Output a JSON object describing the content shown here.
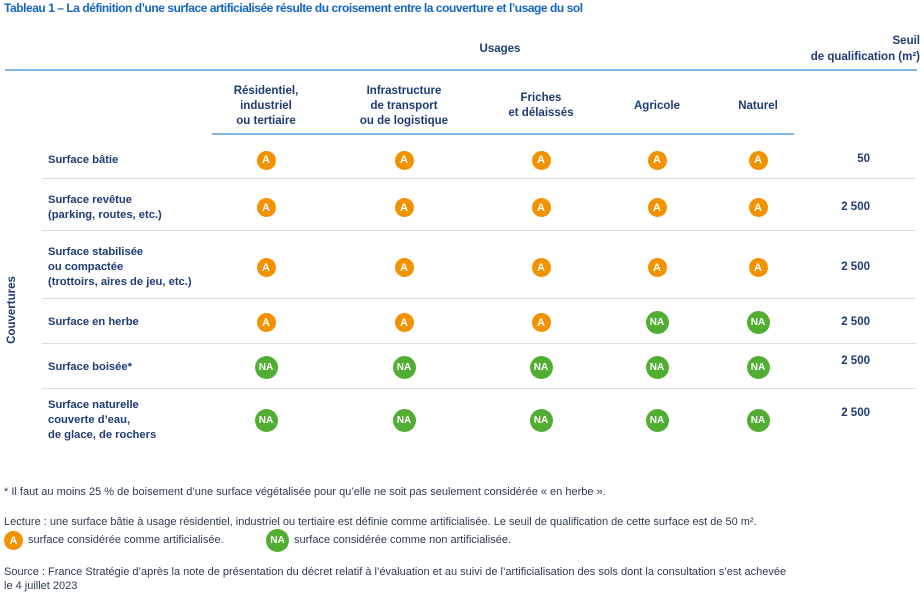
{
  "title": "Tableau 1 – La définition d’une surface artificialisée résulte du croisement entre la couverture et l’usage du sol",
  "header": {
    "usages": "Usages",
    "seuil_line1": "Seuil",
    "seuil_line2": "de qualification (m²)",
    "couvertures": "Couvertures"
  },
  "columns": [
    {
      "lines": [
        "Résidentiel,",
        "industriel",
        "ou tertiaire"
      ]
    },
    {
      "lines": [
        "Infrastructure",
        "de transport",
        "ou de logistique"
      ]
    },
    {
      "lines": [
        "Friches",
        "et délaissés"
      ]
    },
    {
      "lines": [
        "Agricole"
      ]
    },
    {
      "lines": [
        "Naturel"
      ]
    }
  ],
  "rows": [
    {
      "lines": [
        "Surface bâtie"
      ],
      "cells": [
        "A",
        "A",
        "A",
        "A",
        "A"
      ],
      "seuil": "50"
    },
    {
      "lines": [
        "Surface revêtue",
        "(parking, routes, etc.)"
      ],
      "cells": [
        "A",
        "A",
        "A",
        "A",
        "A"
      ],
      "seuil": "2 500"
    },
    {
      "lines": [
        "Surface stabilisée",
        "ou compactée",
        "(trottoirs, aires de jeu, etc.)"
      ],
      "cells": [
        "A",
        "A",
        "A",
        "A",
        "A"
      ],
      "seuil": "2 500"
    },
    {
      "lines": [
        "Surface en herbe"
      ],
      "cells": [
        "A",
        "A",
        "A",
        "NA",
        "NA"
      ],
      "seuil": "2 500"
    },
    {
      "lines": [
        "Surface boisée*"
      ],
      "cells": [
        "NA",
        "NA",
        "NA",
        "NA",
        "NA"
      ],
      "seuil": "2 500"
    },
    {
      "lines": [
        "Surface naturelle",
        "couverte d’eau,",
        "de glace, de rochers"
      ],
      "cells": [
        "NA",
        "NA",
        "NA",
        "NA",
        "NA"
      ],
      "seuil": "2 500"
    }
  ],
  "notes": {
    "footnote": "* Il faut au moins 25 % de boisement d’une surface végétalisée pour qu’elle ne soit pas seulement considérée « en herbe ».",
    "lecture": "Lecture : une surface bâtie à usage résidentiel, industriel ou tertiaire est définie comme artificialisée. Le seuil de qualification de cette surface est de 50 m².",
    "legend_a_badge": "A",
    "legend_a_text": "surface considérée comme artificialisée.",
    "legend_na_badge": "NA",
    "legend_na_text": "surface considérée comme non artificialisée.",
    "source_line1": "Source : France Stratégie d’après la note de présentation du décret relatif à l’évaluation et au suivi de l’artificialisation des sols dont la consultation s’est achevée",
    "source_line2": "le 4 juillet 2023"
  },
  "colors": {
    "title_blue": "#1565c0",
    "artificialised_orange": "#f39200",
    "non_artificialised_green": "#52ae32",
    "rule_blue": "#7fb6e6"
  }
}
